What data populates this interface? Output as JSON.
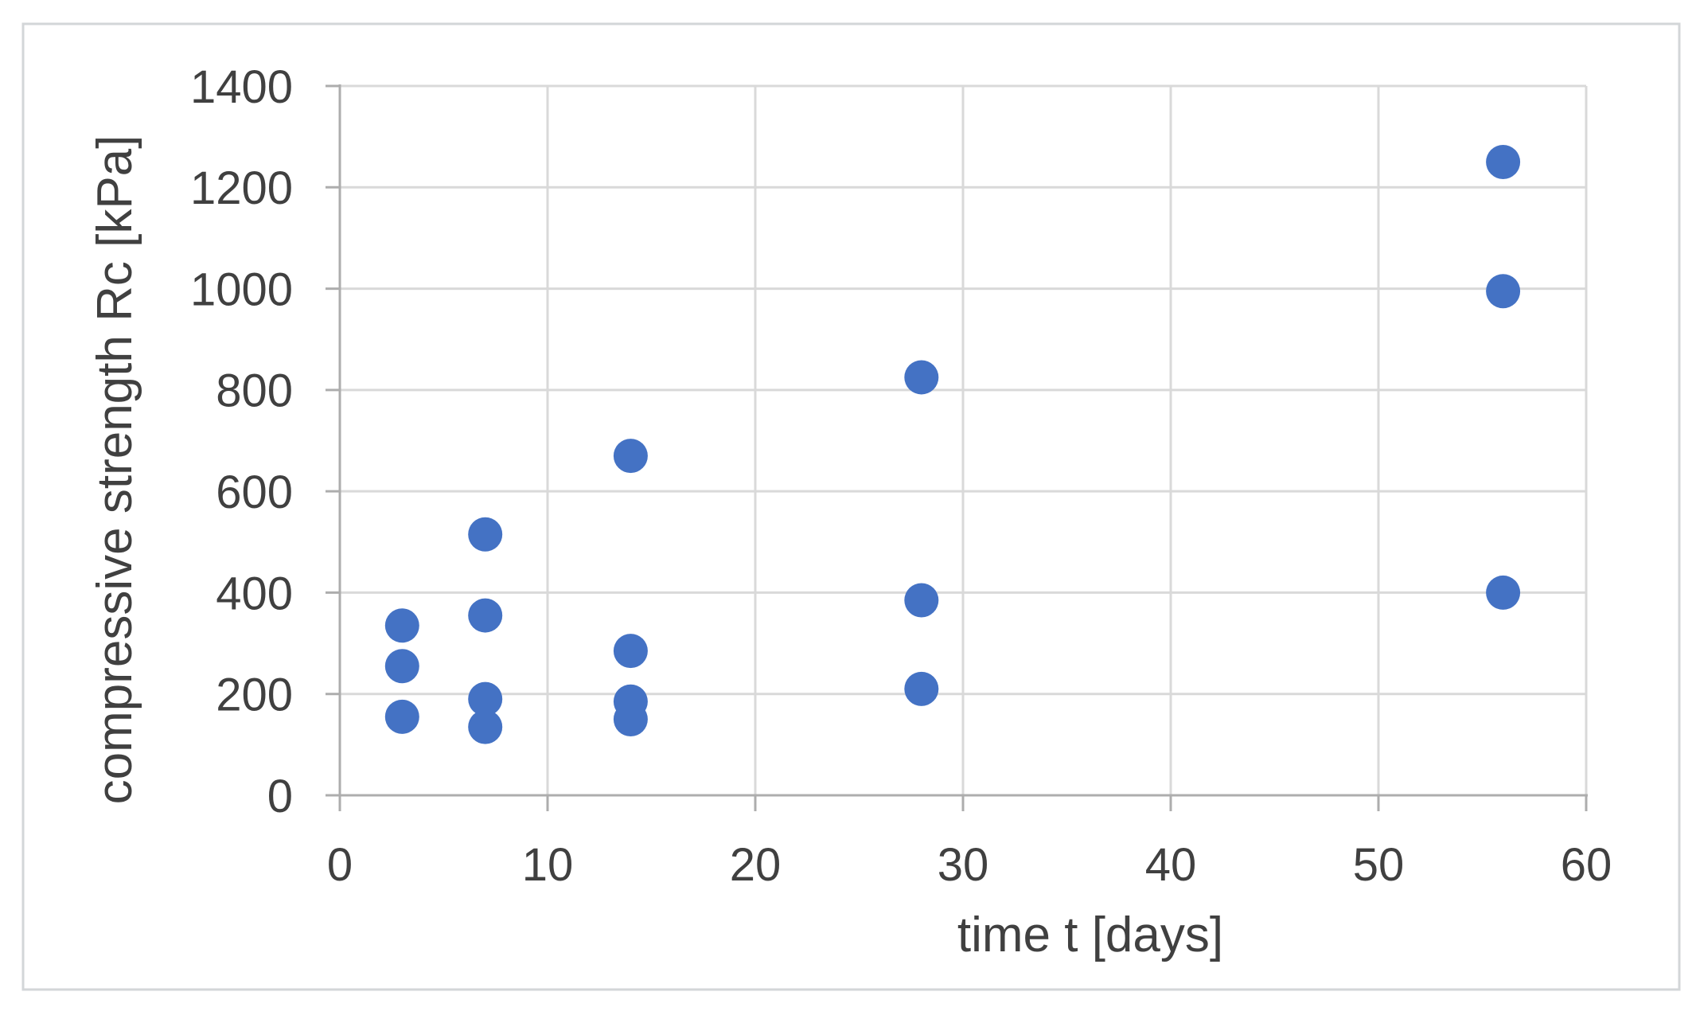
{
  "chart_data": {
    "type": "scatter",
    "title": "",
    "xlabel": "time t [days]",
    "ylabel": "compressive strength Rc [kPa]",
    "xlim": [
      0,
      60
    ],
    "ylim": [
      0,
      1400
    ],
    "xticks": [
      0,
      10,
      20,
      30,
      40,
      50,
      60
    ],
    "yticks": [
      0,
      200,
      400,
      600,
      800,
      1000,
      1200,
      1400
    ],
    "grid": true,
    "legend": false,
    "points": [
      [
        3,
        335
      ],
      [
        3,
        255
      ],
      [
        3,
        155
      ],
      [
        7,
        515
      ],
      [
        7,
        355
      ],
      [
        7,
        190
      ],
      [
        7,
        135
      ],
      [
        14,
        670
      ],
      [
        14,
        285
      ],
      [
        14,
        185
      ],
      [
        14,
        150
      ],
      [
        28,
        825
      ],
      [
        28,
        385
      ],
      [
        28,
        210
      ],
      [
        56,
        1250
      ],
      [
        56,
        995
      ],
      [
        56,
        400
      ]
    ],
    "colors": {
      "marker": "#4472C4",
      "gridline": "#D9D9D9",
      "axis": "#ADADAD",
      "text": "#404040",
      "frame": "#D3D6D8",
      "background": "#FFFFFF"
    }
  }
}
